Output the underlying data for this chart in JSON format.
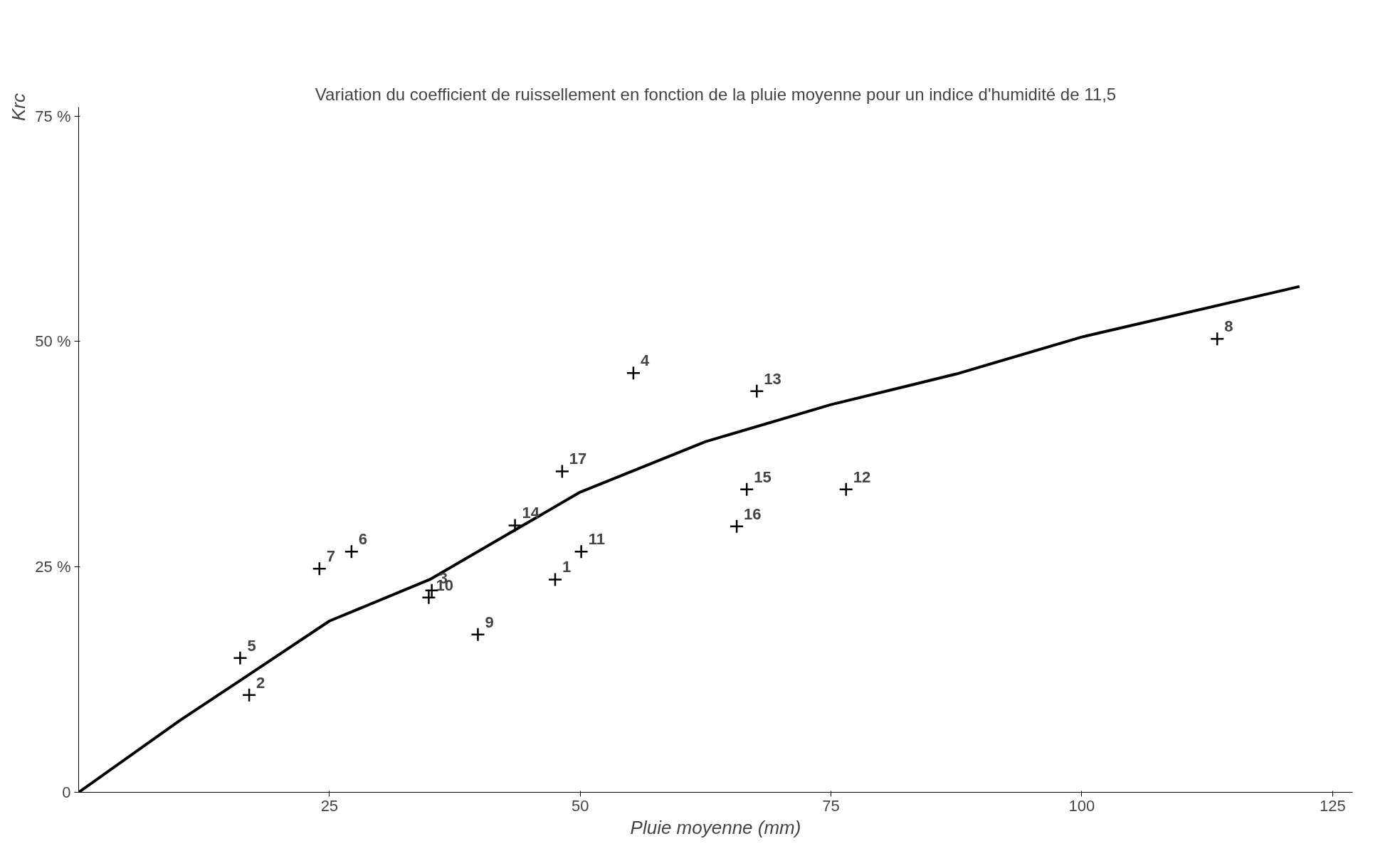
{
  "chart_data": {
    "type": "scatter",
    "title": "Variation du coefficient de ruissellement en fonction de la pluie moyenne pour un indice d'humidité de 11,5",
    "xlabel": "Pluie moyenne (mm)",
    "ylabel": "Krc",
    "xlim": [
      0,
      127
    ],
    "ylim": [
      0,
      76
    ],
    "xticks": [
      25,
      50,
      75,
      100,
      125
    ],
    "yticks": [
      {
        "value": 0,
        "label": "0"
      },
      {
        "value": 25,
        "label": "25 %"
      },
      {
        "value": 50,
        "label": "50 %"
      },
      {
        "value": 75,
        "label": "75 %"
      }
    ],
    "grid": false,
    "marker": "cross",
    "series": [
      {
        "color": "#000000",
        "x": [
          47.5,
          17.0,
          35.2,
          55.3,
          16.1,
          27.2,
          24.0,
          113.5,
          39.8,
          34.9,
          50.1,
          76.5,
          67.6,
          43.5,
          66.6,
          65.6,
          48.2
        ],
        "values": [
          23.6,
          10.8,
          22.4,
          46.5,
          14.9,
          26.7,
          24.8,
          50.3,
          17.5,
          21.6,
          26.7,
          33.6,
          44.5,
          29.6,
          33.6,
          29.5,
          35.6
        ]
      },
      {
        "type": "line",
        "color": "#000000",
        "line_style": "solid",
        "marker": "none",
        "x": [
          0,
          10,
          16.1,
          25,
          35,
          50,
          62.5,
          75,
          87.5,
          100,
          121.7
        ],
        "values": [
          0,
          7.9,
          12.4,
          19.0,
          23.6,
          33.3,
          38.9,
          43.0,
          46.4,
          50.5,
          56.1
        ]
      }
    ],
    "annotations": [
      {
        "text": "1",
        "x": 47.5,
        "y": 23.6
      },
      {
        "text": "2",
        "x": 17.0,
        "y": 10.8
      },
      {
        "text": "3",
        "x": 35.2,
        "y": 22.4
      },
      {
        "text": "4",
        "x": 55.3,
        "y": 46.5
      },
      {
        "text": "5",
        "x": 16.1,
        "y": 14.9
      },
      {
        "text": "6",
        "x": 27.2,
        "y": 26.7
      },
      {
        "text": "7",
        "x": 24.0,
        "y": 24.8
      },
      {
        "text": "8",
        "x": 113.5,
        "y": 50.3
      },
      {
        "text": "9",
        "x": 39.8,
        "y": 17.5
      },
      {
        "text": "10",
        "x": 34.9,
        "y": 21.6
      },
      {
        "text": "11",
        "x": 50.1,
        "y": 26.7
      },
      {
        "text": "12",
        "x": 76.5,
        "y": 33.6
      },
      {
        "text": "13",
        "x": 67.6,
        "y": 44.5
      },
      {
        "text": "14",
        "x": 43.5,
        "y": 29.6
      },
      {
        "text": "15",
        "x": 66.6,
        "y": 33.6
      },
      {
        "text": "16",
        "x": 65.6,
        "y": 29.5
      },
      {
        "text": "17",
        "x": 48.2,
        "y": 35.6
      }
    ]
  }
}
